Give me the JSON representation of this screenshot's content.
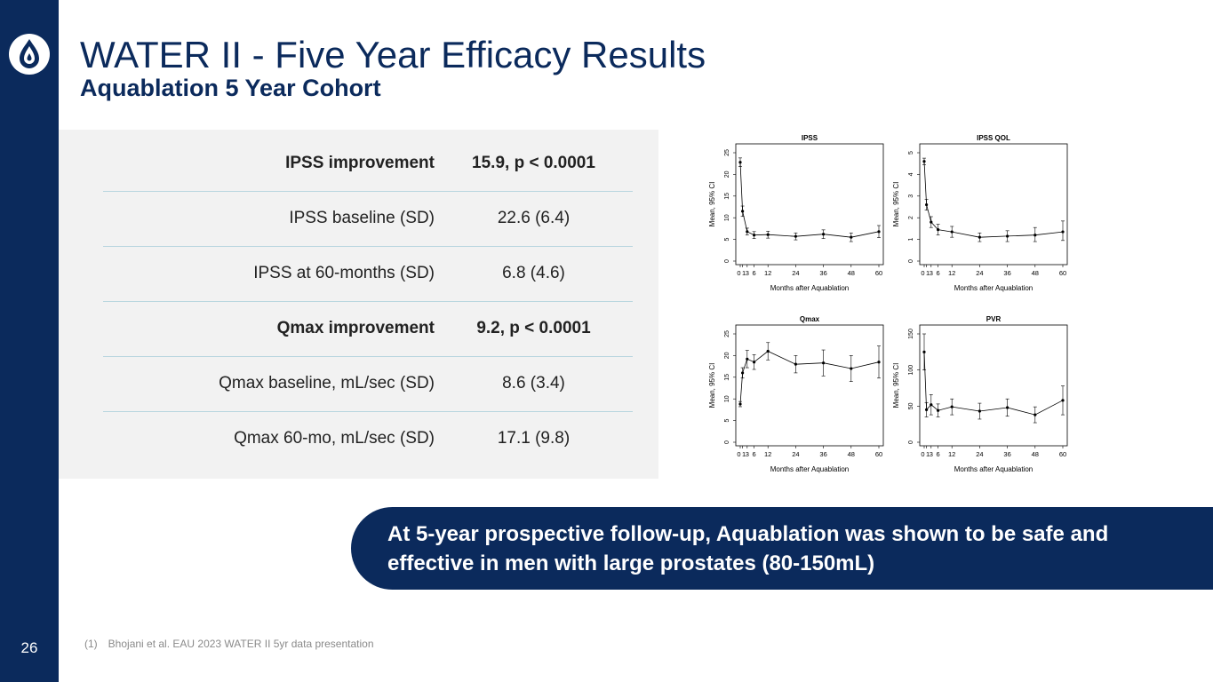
{
  "slide": {
    "title": "WATER II - Five Year Efficacy Results",
    "subtitle": "Aquablation 5 Year Cohort",
    "page_number": "26",
    "banner_text": "At 5-year prospective follow-up, Aquablation was shown to be safe and effective in men with large prostates (80-150mL)",
    "footnote_number": "(1)",
    "footnote_text": "Bhojani et al. EAU 2023 WATER II 5yr data presentation"
  },
  "table": {
    "rows": [
      {
        "label": "IPSS improvement",
        "value": "15.9, p < 0.0001",
        "bold": true
      },
      {
        "label": "IPSS baseline (SD)",
        "value": "22.6 (6.4)",
        "bold": false
      },
      {
        "label": "IPSS at 60-months (SD)",
        "value": "6.8 (4.6)",
        "bold": false
      },
      {
        "label": "Qmax improvement",
        "value": "9.2, p < 0.0001",
        "bold": true
      },
      {
        "label": "Qmax baseline, mL/sec (SD)",
        "value": "8.6 (3.4)",
        "bold": false
      },
      {
        "label": "Qmax 60-mo, mL/sec (SD)",
        "value": "17.1 (9.8)",
        "bold": false
      }
    ]
  },
  "chart_data": [
    {
      "type": "line",
      "title": "IPSS",
      "xlabel": "Months after Aquablation",
      "ylabel": "Mean, 95% CI",
      "xlim": [
        0,
        60
      ],
      "ylim": [
        0,
        25
      ],
      "x_ticks": [
        "0",
        "1",
        "3",
        "6",
        "12",
        "24",
        "36",
        "48",
        "60"
      ],
      "y_ticks": [
        "0",
        "5",
        "10",
        "15",
        "20",
        "25"
      ],
      "x": [
        0,
        1,
        3,
        6,
        12,
        24,
        36,
        48,
        60
      ],
      "values": [
        22.8,
        11.5,
        6.8,
        6.0,
        6.1,
        5.7,
        6.2,
        5.5,
        6.8
      ],
      "lower": [
        21.8,
        10.3,
        6.0,
        5.2,
        5.3,
        4.9,
        5.2,
        4.5,
        5.4
      ],
      "upper": [
        23.8,
        12.7,
        7.6,
        6.8,
        6.9,
        6.5,
        7.2,
        6.5,
        8.2
      ],
      "grid": false
    },
    {
      "type": "line",
      "title": "IPSS QOL",
      "xlabel": "Months after Aquablation",
      "ylabel": "Mean, 95% CI",
      "xlim": [
        0,
        60
      ],
      "ylim": [
        0,
        5
      ],
      "x_ticks": [
        "0",
        "1",
        "3",
        "6",
        "12",
        "24",
        "36",
        "48",
        "60"
      ],
      "y_ticks": [
        "0",
        "1",
        "2",
        "3",
        "4",
        "5"
      ],
      "x": [
        0,
        1,
        3,
        6,
        12,
        24,
        36,
        48,
        60
      ],
      "values": [
        4.6,
        2.6,
        1.8,
        1.45,
        1.35,
        1.1,
        1.15,
        1.2,
        1.35
      ],
      "lower": [
        4.45,
        2.35,
        1.55,
        1.2,
        1.1,
        0.9,
        0.9,
        0.9,
        0.95
      ],
      "upper": [
        4.75,
        2.85,
        2.05,
        1.7,
        1.6,
        1.3,
        1.4,
        1.55,
        1.85
      ],
      "grid": false
    },
    {
      "type": "line",
      "title": "Qmax",
      "xlabel": "Months after Aquablation",
      "ylabel": "Mean, 95% CI",
      "xlim": [
        0,
        60
      ],
      "ylim": [
        0,
        25
      ],
      "x_ticks": [
        "0",
        "1",
        "3",
        "6",
        "12",
        "24",
        "36",
        "48",
        "60"
      ],
      "y_ticks": [
        "0",
        "5",
        "10",
        "15",
        "20",
        "25"
      ],
      "x": [
        0,
        1,
        3,
        6,
        12,
        24,
        36,
        48,
        60
      ],
      "values": [
        8.8,
        16.0,
        19.2,
        18.5,
        21.0,
        18.0,
        18.3,
        17.0,
        18.5
      ],
      "lower": [
        8.2,
        14.8,
        17.2,
        16.8,
        19.0,
        16.0,
        15.3,
        14.0,
        14.8
      ],
      "upper": [
        9.4,
        17.2,
        21.2,
        20.2,
        23.0,
        20.0,
        21.3,
        20.0,
        22.2
      ],
      "grid": false
    },
    {
      "type": "line",
      "title": "PVR",
      "xlabel": "Months after Aquablation",
      "ylabel": "Mean, 95% CI",
      "xlim": [
        0,
        60
      ],
      "ylim": [
        0,
        150
      ],
      "x_ticks": [
        "0",
        "1",
        "3",
        "6",
        "12",
        "24",
        "36",
        "48",
        "60"
      ],
      "y_ticks": [
        "0",
        "50",
        "100",
        "150"
      ],
      "x": [
        0,
        1,
        3,
        6,
        12,
        24,
        36,
        48,
        60
      ],
      "values": [
        125,
        45,
        52,
        44,
        49,
        43,
        48,
        38,
        58
      ],
      "lower": [
        100,
        35,
        38,
        35,
        38,
        32,
        36,
        27,
        38
      ],
      "upper": [
        150,
        55,
        66,
        53,
        60,
        54,
        60,
        49,
        78
      ],
      "grid": false
    }
  ]
}
